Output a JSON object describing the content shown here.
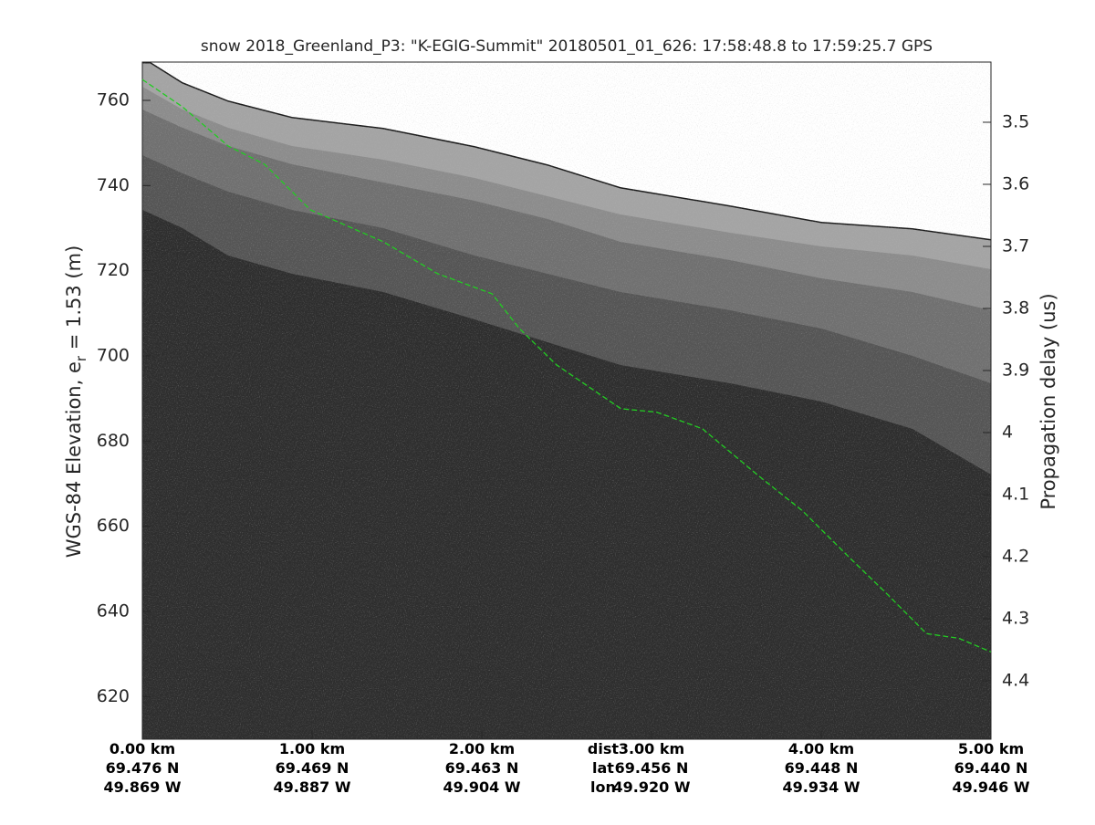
{
  "chart_data": {
    "type": "line",
    "title": "snow 2018_Greenland_P3: \"K-EGIG-Summit\"  20180501_01_626: 17:58:48.8 to 17:59:25.7 GPS",
    "ylabel": "WGS-84 Elevation, e",
    "ylabel_sub": "r",
    "ylabel_end": " = 1.53 (m)",
    "y2label": "Propagation delay (us)",
    "xlim": [
      0,
      5
    ],
    "xticks": [
      {
        "value": 0,
        "label": "0.00 km"
      },
      {
        "value": 1,
        "label": "1.00 km"
      },
      {
        "value": 2,
        "label": "2.00 km"
      },
      {
        "value": 3,
        "label": "3.00 km"
      },
      {
        "value": 4,
        "label": "4.00 km"
      },
      {
        "value": 5,
        "label": "5.00 km"
      }
    ],
    "lat_labels": [
      "69.476 N",
      "69.469 N",
      "69.463 N",
      "69.456 N",
      "69.448 N",
      "69.440 N"
    ],
    "lon_labels": [
      "49.869 W",
      "49.887 W",
      "49.904 W",
      "49.920 W",
      "49.934 W",
      "49.946 W"
    ],
    "row_labels": [
      "dist",
      "lat",
      "lon"
    ],
    "ylim": [
      610,
      769
    ],
    "yticks": [
      620,
      640,
      660,
      680,
      700,
      720,
      740,
      760
    ],
    "y2lim": [
      4.494,
      3.403
    ],
    "y2ticks": [
      3.5,
      3.6,
      3.7,
      3.8,
      3.9,
      4,
      4.1,
      4.2,
      4.3,
      4.4
    ],
    "series": [
      {
        "color": "#22cc22",
        "x": [
          0,
          0.236,
          0.505,
          0.72,
          0.99,
          1.42,
          1.74,
          2.06,
          2.22,
          2.44,
          2.82,
          3.03,
          3.3,
          3.62,
          3.89,
          4.16,
          4.38,
          4.62,
          4.81,
          5.0
        ],
        "values": [
          764.9,
          758.5,
          749.3,
          745.0,
          734.3,
          726.8,
          719.3,
          714.6,
          706.5,
          697.9,
          687.6,
          686.8,
          682.9,
          672.2,
          663.6,
          652.9,
          644.4,
          634.8,
          633.7,
          630.5
        ]
      }
    ]
  }
}
